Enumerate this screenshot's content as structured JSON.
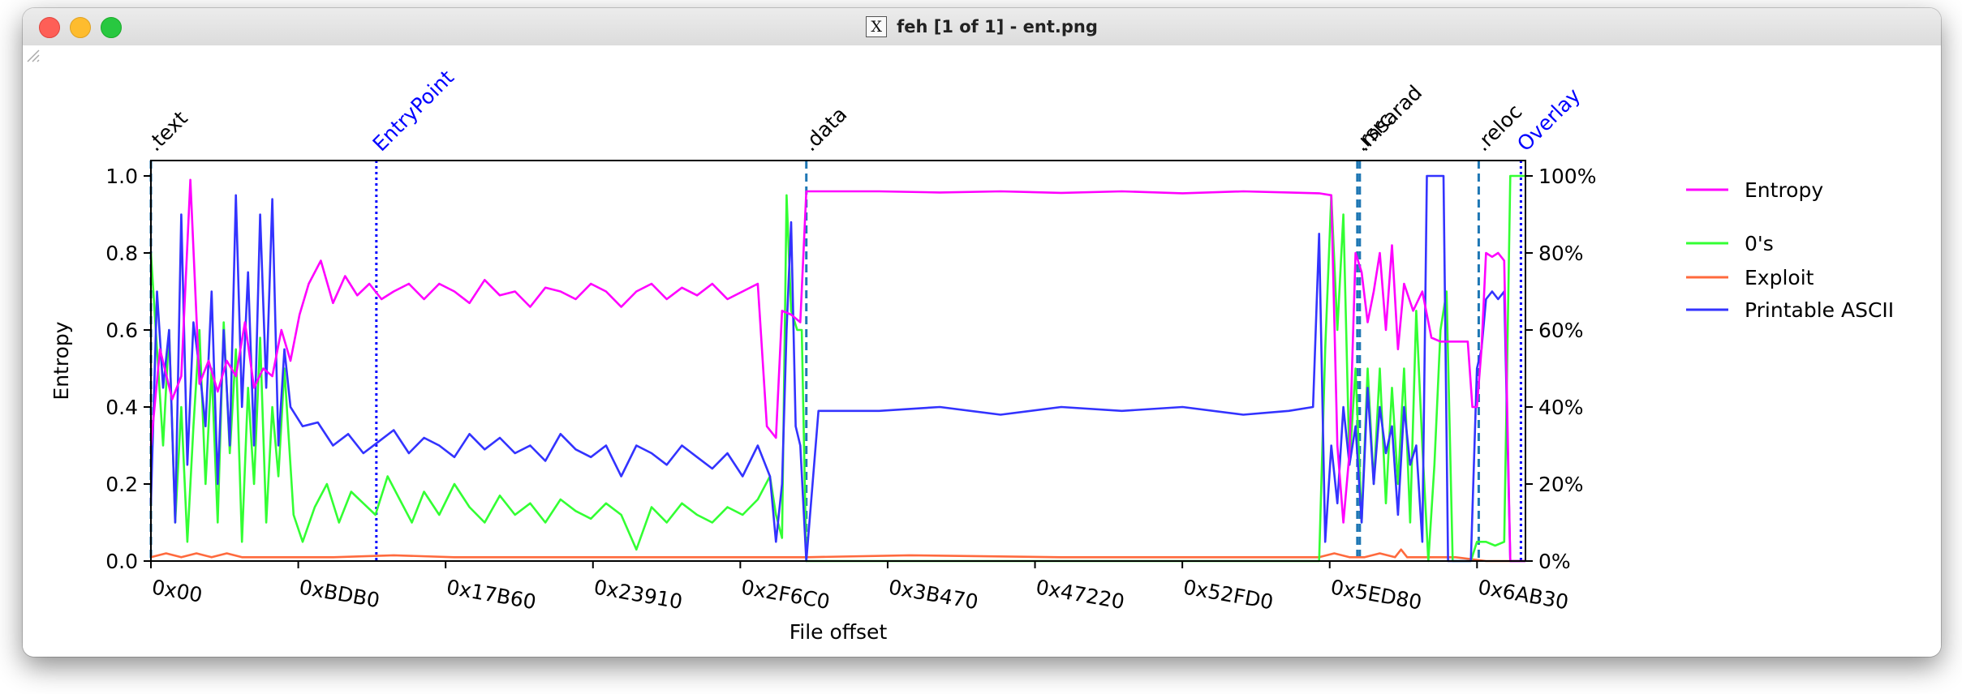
{
  "window": {
    "title": "feh [1 of 1] - ent.png",
    "app_icon": "x11-icon"
  },
  "chart_data": {
    "type": "line",
    "xlabel": "File offset",
    "ylabel": "Entropy",
    "x_range": [
      0,
      453000
    ],
    "ylim": [
      0,
      1.04
    ],
    "yticks": [
      "0.0",
      "0.2",
      "0.4",
      "0.6",
      "0.8",
      "1.0"
    ],
    "ytick_values": [
      0,
      0.2,
      0.4,
      0.6,
      0.8,
      1.0
    ],
    "y2ticks": [
      "0%",
      "20%",
      "40%",
      "60%",
      "80%",
      "100%"
    ],
    "xticks": [
      "0x00",
      "0xBDB0",
      "0x17B60",
      "0x23910",
      "0x2F6C0",
      "0x3B470",
      "0x47220",
      "0x52FD0",
      "0x5ED80",
      "0x6AB30"
    ],
    "xtick_values": [
      0,
      48560,
      97120,
      145680,
      194240,
      242800,
      291360,
      339920,
      388480,
      437040
    ],
    "grid": false,
    "legend_position": "right",
    "legend": [
      "Entropy",
      "0's",
      "Exploit",
      "Printable ASCII"
    ],
    "colors": {
      "Entropy": "#ff00ff",
      "0's": "#33ff33",
      "Exploit": "#ff6a3d",
      "Printable ASCII": "#3333ff",
      "section_marker": "#1f77b4",
      "entrypoint_marker": "#0000ff",
      "overlay_marker": "#0000ff"
    },
    "markers": [
      {
        "label": ".text",
        "x": 0,
        "style": "dashed"
      },
      {
        "label": "EntryPoint",
        "x": 74300,
        "style": "dotted"
      },
      {
        "label": ".data",
        "x": 216000,
        "style": "dashed"
      },
      {
        "label": ".rsrc",
        "x": 397600,
        "style": "dashed"
      },
      {
        "label": ".msarad",
        "x": 398400,
        "style": "dashed"
      },
      {
        "label": ".reloc",
        "x": 437600,
        "style": "dashed"
      },
      {
        "label": "Overlay",
        "x": 451500,
        "style": "dotted"
      }
    ],
    "series": [
      {
        "name": "Entropy",
        "x": [
          0,
          3000,
          7000,
          10000,
          13000,
          16000,
          19000,
          22000,
          25000,
          28000,
          31000,
          34000,
          37000,
          40000,
          43000,
          46000,
          49000,
          52000,
          56000,
          60000,
          64000,
          68000,
          72000,
          76000,
          80000,
          85000,
          90000,
          95000,
          100000,
          105000,
          110000,
          115000,
          120000,
          125000,
          130000,
          135000,
          140000,
          145000,
          150000,
          155000,
          160000,
          165000,
          170000,
          175000,
          180000,
          185000,
          190000,
          195000,
          200000,
          203000,
          206000,
          208000,
          211000,
          214000,
          216000,
          220000,
          240000,
          260000,
          280000,
          300000,
          320000,
          340000,
          360000,
          375000,
          385000,
          389000,
          391000,
          393000,
          395000,
          397000,
          399000,
          401000,
          403000,
          405000,
          407000,
          409000,
          411000,
          413000,
          416000,
          419000,
          422000,
          425000,
          428000,
          431000,
          434000,
          435500,
          437000,
          438500,
          440000,
          442000,
          444000,
          446000,
          448000,
          451000,
          453000
        ],
        "values": [
          0.3,
          0.55,
          0.42,
          0.48,
          0.99,
          0.46,
          0.52,
          0.44,
          0.52,
          0.48,
          0.62,
          0.45,
          0.5,
          0.48,
          0.6,
          0.52,
          0.64,
          0.72,
          0.78,
          0.67,
          0.74,
          0.69,
          0.72,
          0.68,
          0.7,
          0.72,
          0.68,
          0.72,
          0.7,
          0.67,
          0.73,
          0.69,
          0.7,
          0.66,
          0.71,
          0.7,
          0.68,
          0.72,
          0.7,
          0.66,
          0.7,
          0.72,
          0.68,
          0.71,
          0.69,
          0.72,
          0.68,
          0.7,
          0.72,
          0.35,
          0.32,
          0.65,
          0.64,
          0.62,
          0.96,
          0.96,
          0.96,
          0.957,
          0.96,
          0.956,
          0.96,
          0.955,
          0.96,
          0.957,
          0.955,
          0.95,
          0.3,
          0.1,
          0.28,
          0.8,
          0.75,
          0.62,
          0.7,
          0.8,
          0.6,
          0.82,
          0.55,
          0.72,
          0.65,
          0.7,
          0.58,
          0.57,
          0.57,
          0.57,
          0.57,
          0.4,
          0.4,
          0.55,
          0.8,
          0.79,
          0.8,
          0.78,
          0.0,
          0.0,
          0.0
        ]
      },
      {
        "name": "0's",
        "x": [
          0,
          2000,
          4000,
          6000,
          8000,
          10000,
          12000,
          14000,
          16000,
          18000,
          20000,
          22000,
          24000,
          26000,
          28000,
          30000,
          32000,
          34000,
          36000,
          38000,
          40000,
          42000,
          44000,
          47000,
          50000,
          54000,
          58000,
          62000,
          66000,
          70000,
          74000,
          78000,
          82000,
          86000,
          90000,
          95000,
          100000,
          105000,
          110000,
          115000,
          120000,
          125000,
          130000,
          135000,
          140000,
          145000,
          150000,
          155000,
          160000,
          165000,
          170000,
          175000,
          180000,
          185000,
          190000,
          195000,
          200000,
          204000,
          206000,
          208000,
          209500,
          211000,
          213000,
          214500,
          216000,
          220000,
          240000,
          260000,
          280000,
          300000,
          320000,
          340000,
          360000,
          380000,
          385000,
          387000,
          389000,
          391000,
          393000,
          395000,
          397000,
          399000,
          401000,
          403000,
          405000,
          407000,
          409000,
          411000,
          413000,
          415000,
          417000,
          419000,
          421000,
          423000,
          425000,
          427000,
          429000,
          431000,
          433000,
          435000,
          437000,
          438000,
          440000,
          443000,
          446000,
          448000,
          449000,
          450000,
          451500,
          453000
        ],
        "values": [
          0.8,
          0.55,
          0.3,
          0.6,
          0.1,
          0.4,
          0.05,
          0.35,
          0.6,
          0.2,
          0.5,
          0.1,
          0.62,
          0.28,
          0.55,
          0.05,
          0.45,
          0.2,
          0.58,
          0.1,
          0.4,
          0.22,
          0.5,
          0.12,
          0.05,
          0.14,
          0.2,
          0.1,
          0.18,
          0.15,
          0.12,
          0.22,
          0.16,
          0.1,
          0.18,
          0.12,
          0.2,
          0.14,
          0.1,
          0.17,
          0.12,
          0.15,
          0.1,
          0.16,
          0.13,
          0.11,
          0.15,
          0.12,
          0.03,
          0.14,
          0.1,
          0.15,
          0.12,
          0.1,
          0.14,
          0.12,
          0.16,
          0.22,
          0.12,
          0.06,
          0.95,
          0.65,
          0.6,
          0.6,
          0.0,
          0.0,
          0.0,
          0.0,
          0.0,
          0.0,
          0.0,
          0.0,
          0.0,
          0.0,
          0.0,
          0.55,
          0.95,
          0.6,
          0.9,
          0.25,
          0.5,
          0.1,
          0.5,
          0.2,
          0.5,
          0.15,
          0.45,
          0.2,
          0.5,
          0.1,
          0.65,
          0.3,
          0.0,
          0.25,
          0.6,
          0.7,
          0.0,
          0.0,
          0.0,
          0.0,
          0.05,
          0.05,
          0.05,
          0.04,
          0.05,
          1.0,
          1.0,
          1.0,
          1.0,
          1.0
        ]
      },
      {
        "name": "Exploit",
        "x": [
          0,
          5000,
          10000,
          15000,
          20000,
          25000,
          30000,
          40000,
          60000,
          80000,
          100000,
          150000,
          200000,
          216000,
          250000,
          300000,
          350000,
          385000,
          390000,
          395000,
          400000,
          405000,
          410000,
          412000,
          414000,
          420000,
          430000,
          440000,
          453000
        ],
        "values": [
          0.01,
          0.02,
          0.01,
          0.02,
          0.01,
          0.02,
          0.01,
          0.01,
          0.01,
          0.015,
          0.01,
          0.01,
          0.01,
          0.01,
          0.015,
          0.01,
          0.01,
          0.01,
          0.02,
          0.01,
          0.01,
          0.02,
          0.01,
          0.03,
          0.01,
          0.01,
          0.01,
          0.0,
          0.0
        ]
      },
      {
        "name": "Printable ASCII",
        "x": [
          0,
          2000,
          4000,
          6000,
          8000,
          10000,
          12000,
          14000,
          16000,
          18000,
          20000,
          22000,
          24000,
          26000,
          28000,
          30000,
          32000,
          34000,
          36000,
          38000,
          40000,
          42000,
          44000,
          46000,
          50000,
          55000,
          60000,
          65000,
          70000,
          75000,
          80000,
          85000,
          90000,
          95000,
          100000,
          105000,
          110000,
          115000,
          120000,
          125000,
          130000,
          135000,
          140000,
          145000,
          150000,
          155000,
          160000,
          165000,
          170000,
          175000,
          180000,
          185000,
          190000,
          195000,
          200000,
          204000,
          206000,
          208000,
          209500,
          211000,
          212500,
          214000,
          216000,
          220000,
          240000,
          260000,
          280000,
          300000,
          320000,
          340000,
          360000,
          375000,
          383000,
          385000,
          387000,
          389000,
          391000,
          393000,
          395000,
          397000,
          399000,
          401000,
          403000,
          405000,
          407000,
          409000,
          411000,
          413000,
          415000,
          417000,
          419000,
          420500,
          426000,
          427500,
          429000,
          431000,
          433000,
          435000,
          437000,
          438500,
          440000,
          442000,
          444000,
          446000,
          448000,
          449500,
          451000,
          453000
        ],
        "values": [
          0.15,
          0.7,
          0.45,
          0.6,
          0.1,
          0.9,
          0.25,
          0.62,
          0.5,
          0.35,
          0.7,
          0.2,
          0.6,
          0.3,
          0.95,
          0.4,
          0.75,
          0.3,
          0.9,
          0.45,
          0.94,
          0.3,
          0.55,
          0.4,
          0.35,
          0.36,
          0.3,
          0.33,
          0.28,
          0.31,
          0.34,
          0.28,
          0.32,
          0.3,
          0.27,
          0.33,
          0.29,
          0.32,
          0.28,
          0.3,
          0.26,
          0.33,
          0.29,
          0.27,
          0.3,
          0.22,
          0.3,
          0.28,
          0.25,
          0.3,
          0.27,
          0.24,
          0.28,
          0.22,
          0.3,
          0.22,
          0.05,
          0.2,
          0.6,
          0.88,
          0.35,
          0.3,
          0.0,
          0.39,
          0.39,
          0.4,
          0.38,
          0.4,
          0.39,
          0.4,
          0.38,
          0.39,
          0.4,
          0.85,
          0.05,
          0.3,
          0.15,
          0.4,
          0.25,
          0.35,
          0.1,
          0.45,
          0.2,
          0.4,
          0.28,
          0.35,
          0.12,
          0.4,
          0.25,
          0.3,
          0.05,
          1.0,
          1.0,
          0.0,
          0.0,
          0.0,
          0.0,
          0.0,
          0.5,
          0.55,
          0.68,
          0.7,
          0.68,
          0.7,
          0.0,
          0.0,
          0.0,
          0.0
        ]
      }
    ]
  }
}
